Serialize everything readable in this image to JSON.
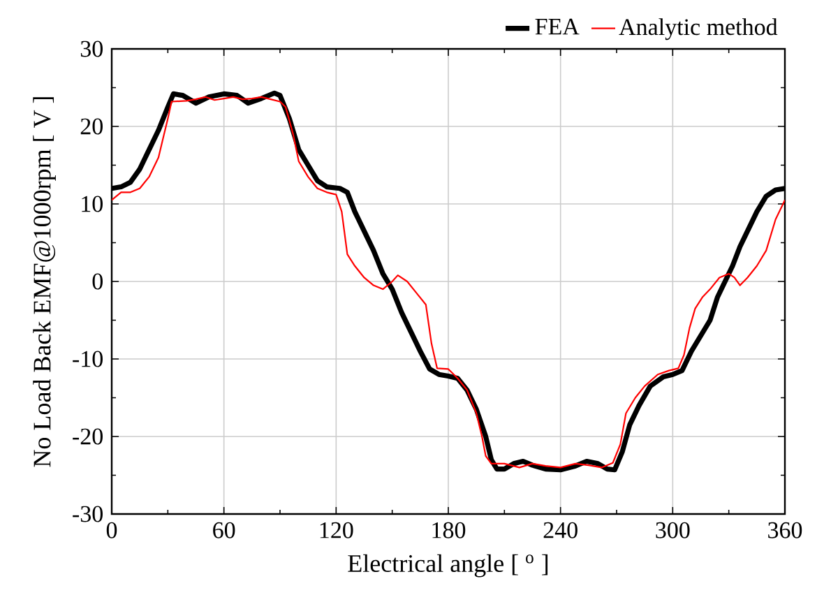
{
  "chart_data": {
    "type": "line",
    "xlabel": "Electrical angle [ $^{o}$ ]",
    "ylabel": "No Load Back EMF@1000rpm [ V ]",
    "xlim": [
      0,
      360
    ],
    "ylim": [
      -30,
      30
    ],
    "xticks": [
      0,
      60,
      120,
      180,
      240,
      300,
      360
    ],
    "yticks": [
      -30,
      -20,
      -10,
      0,
      10,
      20,
      30
    ],
    "grid": true,
    "legend": "top right",
    "marker": "none",
    "line_style": "solid",
    "series": [
      {
        "name": "FEA",
        "color": "#000000",
        "x": [
          0,
          5,
          10,
          15,
          20,
          25,
          30,
          33,
          38,
          45,
          52,
          60,
          67,
          73,
          80,
          87,
          90,
          95,
          100,
          105,
          110,
          115,
          122,
          126,
          130,
          135,
          140,
          145,
          150,
          155,
          160,
          165,
          170,
          175,
          180,
          185,
          190,
          195,
          200,
          203,
          206,
          210,
          215,
          220,
          225,
          232,
          240,
          248,
          254,
          260,
          265,
          269,
          273,
          277,
          282,
          288,
          295,
          300,
          305,
          310,
          315,
          320,
          324,
          328,
          332,
          336,
          340,
          345,
          350,
          355,
          360
        ],
        "values": [
          12,
          12.2,
          12.8,
          14.5,
          17,
          19.5,
          22.5,
          24.2,
          24,
          23,
          23.8,
          24.2,
          24,
          23,
          23.6,
          24.3,
          24,
          21,
          17,
          15,
          13,
          12.2,
          12,
          11.5,
          9,
          6.5,
          4,
          1,
          -1,
          -4,
          -6.5,
          -9,
          -11.3,
          -12,
          -12.2,
          -12.5,
          -14,
          -16.5,
          -20,
          -23,
          -24.2,
          -24.2,
          -23.5,
          -23.2,
          -23.7,
          -24.2,
          -24.3,
          -23.8,
          -23.2,
          -23.5,
          -24.2,
          -24.3,
          -22,
          -18.5,
          -16,
          -13.5,
          -12.3,
          -12,
          -11.5,
          -9,
          -7,
          -5,
          -2,
          0,
          2,
          4.5,
          6.5,
          9,
          11,
          11.8,
          12
        ]
      },
      {
        "name": "Analytic method",
        "color": "#ff0000",
        "x": [
          0,
          5,
          10,
          15,
          20,
          25,
          28,
          30,
          32,
          40,
          45,
          50,
          55,
          60,
          65,
          70,
          75,
          80,
          85,
          90,
          93,
          97,
          100,
          105,
          110,
          115,
          120,
          123,
          126,
          130,
          135,
          140,
          145,
          150,
          153,
          158,
          163,
          168,
          171,
          174,
          180,
          185,
          190,
          195,
          198,
          200,
          203,
          210,
          218,
          225,
          232,
          240,
          248,
          255,
          262,
          268,
          272,
          275,
          280,
          285,
          292,
          298,
          303,
          306,
          309,
          312,
          316,
          320,
          325,
          330,
          333,
          336,
          340,
          345,
          350,
          355,
          360
        ],
        "values": [
          10.5,
          11.5,
          11.5,
          12,
          13.5,
          16,
          19,
          21,
          23.2,
          23.3,
          23.5,
          23.8,
          23.4,
          23.6,
          23.8,
          23.5,
          23.6,
          23.8,
          23.5,
          23.2,
          22.5,
          19,
          15.5,
          13.5,
          12,
          11.5,
          11.2,
          9,
          3.5,
          2,
          0.5,
          -0.5,
          -1,
          0,
          0.8,
          0,
          -1.5,
          -3,
          -8,
          -11.2,
          -11.3,
          -12.5,
          -14,
          -17,
          -20,
          -22.5,
          -23.5,
          -23.5,
          -24,
          -23.5,
          -23.8,
          -24,
          -23.5,
          -23.7,
          -24,
          -23.4,
          -21,
          -17,
          -15,
          -13.5,
          -12,
          -11.5,
          -11.2,
          -9.5,
          -6,
          -3.5,
          -2,
          -1,
          0.5,
          1,
          0.5,
          -0.5,
          0.5,
          2,
          4,
          8,
          10.5
        ]
      }
    ]
  }
}
